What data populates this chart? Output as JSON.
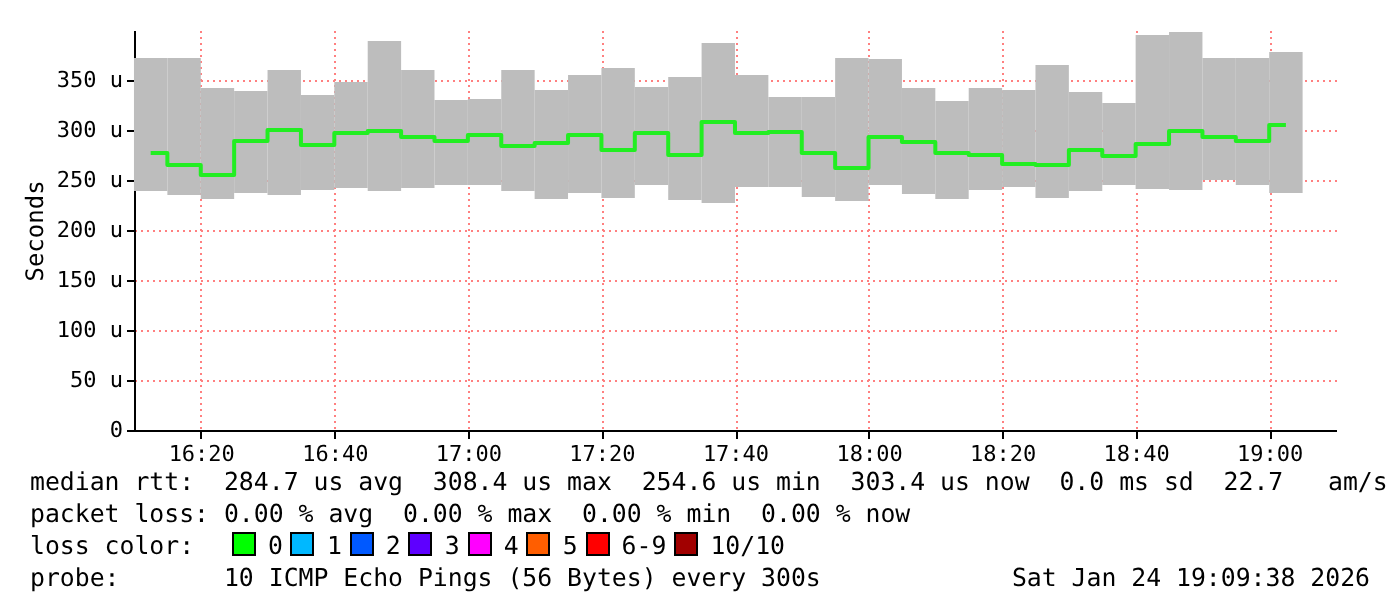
{
  "chart_data": {
    "type": "bar",
    "ylabel": "Seconds",
    "x": [
      16.2083,
      16.2917,
      16.375,
      16.4583,
      16.5417,
      16.625,
      16.7083,
      16.7917,
      16.875,
      16.9583,
      17.0417,
      17.125,
      17.2083,
      17.2917,
      17.375,
      17.4583,
      17.5417,
      17.625,
      17.7083,
      17.7917,
      17.875,
      17.9583,
      18.0417,
      18.125,
      18.2083,
      18.2917,
      18.375,
      18.4583,
      18.5417,
      18.625,
      18.7083,
      18.7917,
      18.875,
      18.9583,
      19.0417
    ],
    "series": [
      {
        "color": "#bdbdbd",
        "base": [
          239,
          235,
          231,
          237,
          235,
          240,
          242,
          239,
          242,
          245,
          245,
          239,
          231,
          237,
          232,
          245,
          230,
          227,
          243,
          243,
          233,
          229,
          245,
          236,
          231,
          240,
          243,
          232,
          239,
          245,
          241,
          240,
          250,
          245,
          237
        ],
        "values": [
          133,
          137,
          111,
          102,
          125,
          95,
          106,
          150,
          118,
          85,
          86,
          121,
          109,
          118,
          130,
          98,
          123,
          160,
          112,
          90,
          100,
          143,
          126,
          106,
          98,
          102,
          97,
          133,
          99,
          82,
          154,
          158,
          122,
          127,
          141
        ]
      },
      {
        "type": "step",
        "color": "#22ee22",
        "values": [
          277,
          265,
          255,
          289,
          300,
          285,
          297,
          299,
          293,
          289,
          295,
          284,
          287,
          295,
          280,
          297,
          275,
          308,
          297,
          298,
          277,
          262,
          293,
          288,
          277,
          275,
          266,
          265,
          280,
          274,
          286,
          299,
          293,
          289,
          305
        ]
      }
    ],
    "xlim": [
      16.1667,
      19.1667
    ],
    "xticks": [
      {
        "value": 16.3333,
        "label": "16:20"
      },
      {
        "value": 16.6667,
        "label": "16:40"
      },
      {
        "value": 17,
        "label": "17:00"
      },
      {
        "value": 17.3333,
        "label": "17:20"
      },
      {
        "value": 17.6667,
        "label": "17:40"
      },
      {
        "value": 18,
        "label": "18:00"
      },
      {
        "value": 18.3333,
        "label": "18:20"
      },
      {
        "value": 18.6667,
        "label": "18:40"
      },
      {
        "value": 19,
        "label": "19:00"
      }
    ],
    "ylim": [
      0,
      400
    ],
    "yticks": [
      0,
      {
        "value": 50,
        "label": "50 u"
      },
      {
        "value": 100,
        "label": "100 u"
      },
      {
        "value": 150,
        "label": "150 u"
      },
      {
        "value": 200,
        "label": "200 u"
      },
      {
        "value": 250,
        "label": "250 u"
      },
      {
        "value": 300,
        "label": "300 u"
      },
      {
        "value": 350,
        "label": "350 u"
      }
    ],
    "grid": true,
    "annotations": [
      "median rtt:  284.7 us avg  308.4 us max  254.6 us min  303.4 us now  0.0 ms sd  22.7   am/s",
      "packet loss: 0.00 % avg  0.00 % max  0.00 % min  0.00 % now",
      "loss color:",
      "0",
      "1",
      "2",
      "3",
      "4",
      "5",
      "6-9",
      "10/10",
      "probe:       10 ICMP Echo Pings (56 Bytes) every 300s",
      "Sat Jan 24 19:09:38 2026"
    ]
  }
}
